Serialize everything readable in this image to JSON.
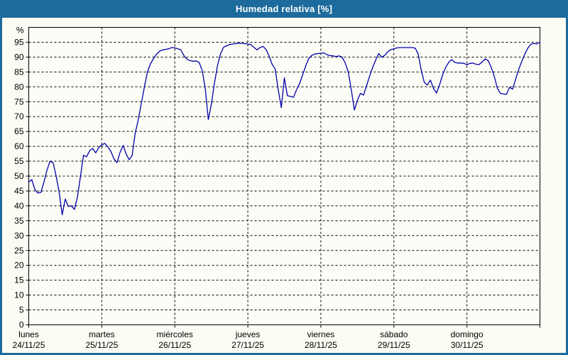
{
  "window": {
    "title": "Humedad relativa [%]"
  },
  "colors": {
    "header_bg": "#1d6a9c",
    "frame_border": "#1d6a9c",
    "page_bg": "#fcfcf4",
    "plot_bg": "#fdfdf7",
    "grid": "#000000",
    "axis": "#000000",
    "line": "#0000aa",
    "title_text": "#ffffff",
    "label_text": "#000000"
  },
  "chart_data": {
    "type": "line",
    "title": "Humedad relativa [%]",
    "ylabel": "%",
    "ylim": [
      0,
      100
    ],
    "ytick_step": 5,
    "ytick_label_max": 95,
    "grid": "dashed",
    "legend_position": "none",
    "x_days": [
      {
        "label": "lunes",
        "date": "24/11/25"
      },
      {
        "label": "martes",
        "date": "25/11/25"
      },
      {
        "label": "miércoles",
        "date": "26/11/25"
      },
      {
        "label": "jueves",
        "date": "27/11/25"
      },
      {
        "label": "viernes",
        "date": "28/11/25"
      },
      {
        "label": "sábado",
        "date": "29/11/25"
      },
      {
        "label": "domingo",
        "date": "30/11/25"
      }
    ],
    "points_per_day": 24,
    "series": [
      {
        "name": "Humedad relativa [%]",
        "unit": "%",
        "values": [
          48,
          48.8,
          45.5,
          44.3,
          44.5,
          48,
          52,
          55,
          54.5,
          50,
          44.5,
          37,
          42.3,
          39.8,
          40,
          38.8,
          43,
          50,
          57,
          56.5,
          58.5,
          59.3,
          57.8,
          59.6,
          60.5,
          61,
          59.8,
          58.3,
          55.8,
          54.5,
          58,
          60.3,
          57.5,
          55.5,
          57,
          64.5,
          69,
          74.5,
          80,
          85,
          87.7,
          89.5,
          91,
          92,
          92.4,
          92.6,
          92.8,
          93.2,
          93.1,
          92.8,
          92.4,
          90.5,
          89.3,
          88.8,
          88.6,
          88.7,
          88.2,
          85.5,
          79.5,
          69,
          74,
          81,
          87,
          91,
          93.3,
          93.8,
          94.2,
          94.4,
          94.5,
          94.7,
          94.6,
          94.5,
          94.4,
          94.2,
          93.3,
          92.4,
          93.2,
          93.6,
          92.5,
          90.3,
          87.5,
          86,
          79,
          73,
          83,
          77,
          76.8,
          76.5,
          79,
          81,
          84,
          87,
          89.5,
          90.6,
          91,
          91.2,
          91.3,
          91.4,
          90.8,
          90.5,
          90.4,
          90.2,
          90.4,
          90,
          88,
          85,
          79,
          72.2,
          75.5,
          77.8,
          77.2,
          80.3,
          83.5,
          86.5,
          89,
          91.2,
          90,
          90.6,
          91.8,
          92.5,
          92.8,
          93.1,
          93.2,
          93.2,
          93.2,
          93.2,
          93.2,
          93,
          91,
          85.5,
          81.5,
          80.6,
          82.3,
          79.5,
          77.9,
          80.7,
          84,
          86.5,
          88.2,
          89.2,
          88.2,
          88,
          88,
          87.9,
          87.4,
          87.9,
          88,
          87.6,
          87.5,
          88.4,
          89.4,
          88.8,
          86.5,
          83.5,
          79.5,
          77.8,
          77.6,
          77.5,
          79.8,
          79.2,
          82.5,
          85.8,
          88.5,
          91,
          93,
          94.3,
          94.6,
          94.4,
          95
        ]
      }
    ]
  }
}
